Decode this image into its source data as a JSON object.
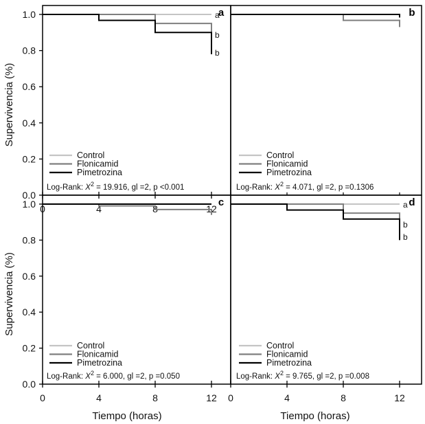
{
  "chart_data": [
    {
      "type": "line",
      "panel_label": "a",
      "xlabel": "",
      "ylabel": "Supervivencia (%)",
      "xlim": [
        0,
        12
      ],
      "ylim": [
        0,
        1.0
      ],
      "xticks": [
        "0",
        "4",
        "8",
        "12"
      ],
      "yticks": [
        "0.0",
        "0.2",
        "0.4",
        "0.6",
        "0.8",
        "1.0"
      ],
      "step": true,
      "series": [
        {
          "name": "Control",
          "color": "#c4c4c4",
          "x": [
            0,
            12
          ],
          "y": [
            1.0,
            1.0
          ],
          "group": "a"
        },
        {
          "name": "Flonicamid",
          "color": "#7f7f7f",
          "x": [
            0,
            8,
            12
          ],
          "y": [
            1.0,
            0.95,
            0.9
          ],
          "group": "b"
        },
        {
          "name": "Pimetrozina",
          "color": "#000000",
          "x": [
            0,
            4,
            8,
            12
          ],
          "y": [
            1.0,
            0.967,
            0.9,
            0.78
          ],
          "group": "b"
        }
      ],
      "group_label_levels": [
        1.0,
        0.89,
        0.79
      ],
      "stat": {
        "prefix": "Log-Rank: ",
        "symbol": "X",
        "sup": "2",
        "rest": " = 19.916, gl =2, p <0.001"
      },
      "legend_placement": "bottom-left"
    },
    {
      "type": "line",
      "panel_label": "b",
      "xlim": [
        0,
        12
      ],
      "ylim": [
        0,
        1.0
      ],
      "step": true,
      "series": [
        {
          "name": "Control",
          "color": "#c4c4c4",
          "x": [
            0,
            12
          ],
          "y": [
            1.0,
            1.0
          ]
        },
        {
          "name": "Flonicamid",
          "color": "#7f7f7f",
          "x": [
            0,
            8,
            12
          ],
          "y": [
            1.0,
            0.967,
            0.93
          ]
        },
        {
          "name": "Pimetrozina",
          "color": "#000000",
          "x": [
            0,
            12
          ],
          "y": [
            1.0,
            0.983
          ]
        }
      ],
      "stat": {
        "prefix": "Log-Rank: ",
        "symbol": "X",
        "sup": "2",
        "rest": " = 4.071, gl =2, p =0.1306"
      },
      "legend_placement": "bottom-left"
    },
    {
      "type": "line",
      "panel_label": "c",
      "xlabel": "Tiempo (horas)",
      "ylabel": "Supervivencia (%)",
      "xlim": [
        0,
        12
      ],
      "ylim": [
        0,
        1.0
      ],
      "xticks": [
        "0",
        "4",
        "8",
        "12"
      ],
      "yticks": [
        "0.0",
        "0.2",
        "0.4",
        "0.6",
        "0.8",
        "1.0"
      ],
      "step": true,
      "series": [
        {
          "name": "Control",
          "color": "#c4c4c4",
          "x": [
            0,
            12
          ],
          "y": [
            1.0,
            1.0
          ]
        },
        {
          "name": "Flonicamid",
          "color": "#7f7f7f",
          "x": [
            0,
            4,
            8,
            12
          ],
          "y": [
            1.0,
            0.99,
            0.97,
            0.94
          ]
        },
        {
          "name": "Pimetrozina",
          "color": "#000000",
          "x": [
            0,
            12
          ],
          "y": [
            1.0,
            1.0
          ]
        }
      ],
      "stat": {
        "prefix": "Log-Rank: ",
        "symbol": "X",
        "sup": "2",
        "rest": " = 6.000, gl =2, p =0.050"
      },
      "legend_placement": "bottom-left"
    },
    {
      "type": "line",
      "panel_label": "d",
      "xlabel": "Tiempo (horas)",
      "xlim": [
        0,
        12
      ],
      "ylim": [
        0,
        1.0
      ],
      "xticks": [
        "0",
        "4",
        "8",
        "12"
      ],
      "step": true,
      "series": [
        {
          "name": "Control",
          "color": "#c4c4c4",
          "x": [
            0,
            12
          ],
          "y": [
            1.0,
            1.0
          ],
          "group": "a"
        },
        {
          "name": "Flonicamid",
          "color": "#7f7f7f",
          "x": [
            0,
            8,
            12
          ],
          "y": [
            1.0,
            0.95,
            0.9
          ],
          "group": "b"
        },
        {
          "name": "Pimetrozina",
          "color": "#000000",
          "x": [
            0,
            4,
            8,
            12
          ],
          "y": [
            1.0,
            0.967,
            0.917,
            0.8
          ],
          "group": "b"
        }
      ],
      "group_label_levels": [
        1.0,
        0.89,
        0.82
      ],
      "stat": {
        "prefix": "Log-Rank: ",
        "symbol": "X",
        "sup": "2",
        "rest": " = 9.765, gl =2, p =0.008"
      },
      "legend_placement": "bottom-left"
    }
  ]
}
